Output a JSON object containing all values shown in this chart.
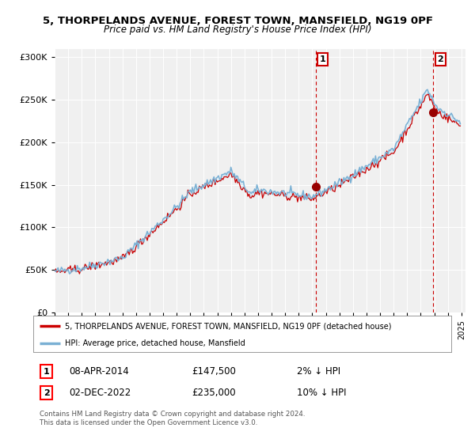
{
  "title": "5, THORPELANDS AVENUE, FOREST TOWN, MANSFIELD, NG19 0PF",
  "subtitle": "Price paid vs. HM Land Registry's House Price Index (HPI)",
  "legend_label1": "5, THORPELANDS AVENUE, FOREST TOWN, MANSFIELD, NG19 0PF (detached house)",
  "legend_label2": "HPI: Average price, detached house, Mansfield",
  "annotation1_date": "08-APR-2014",
  "annotation1_price": "£147,500",
  "annotation1_hpi": "2% ↓ HPI",
  "annotation2_date": "02-DEC-2022",
  "annotation2_price": "£235,000",
  "annotation2_hpi": "10% ↓ HPI",
  "footer": "Contains HM Land Registry data © Crown copyright and database right 2024.\nThis data is licensed under the Open Government Licence v3.0.",
  "line1_color": "#cc0000",
  "line2_color": "#7ab0d4",
  "fill_color": "#d0e8f5",
  "annotation_dot_color": "#990000",
  "annotation_line_color": "#cc0000",
  "box_color": "#cc0000",
  "ylim": [
    0,
    310000
  ],
  "yticks": [
    0,
    50000,
    100000,
    150000,
    200000,
    250000,
    300000
  ],
  "background_color": "#ffffff",
  "plot_bg_color": "#f0f0f0"
}
